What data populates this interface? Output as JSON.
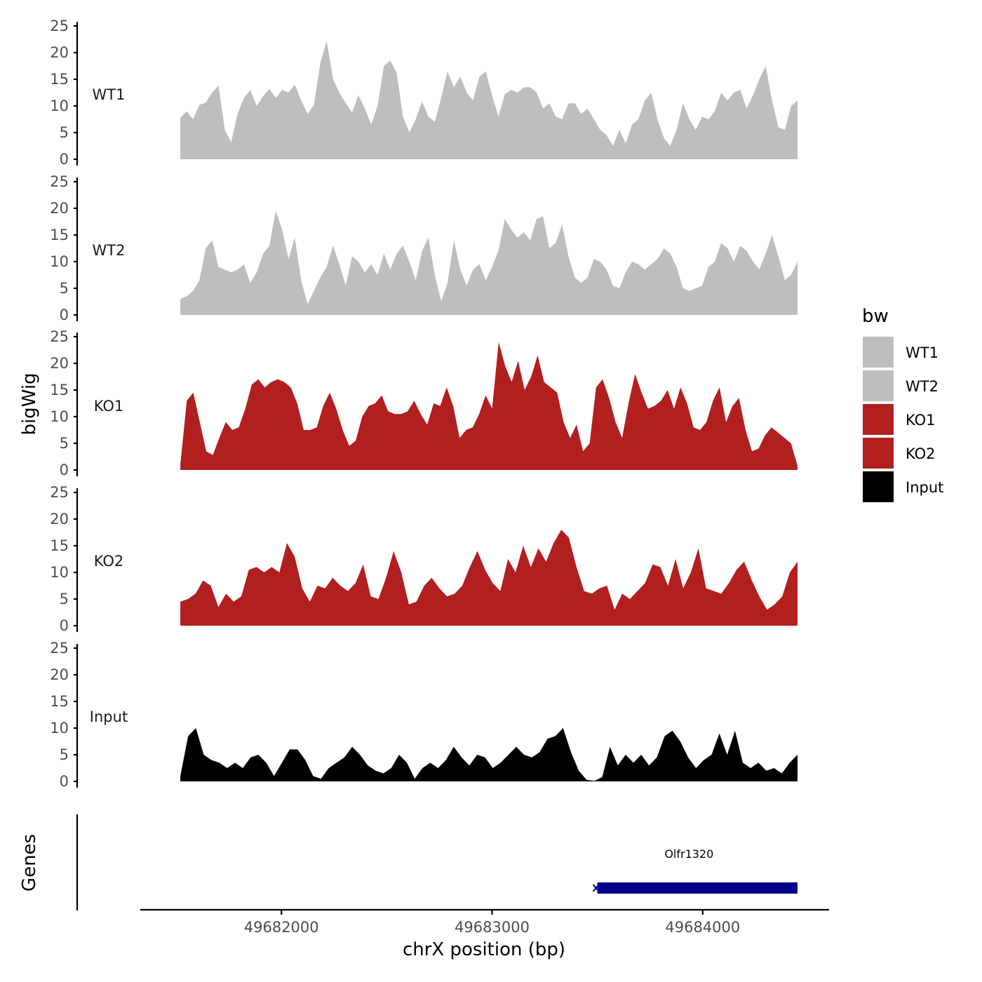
{
  "chart_data": {
    "type": "area",
    "ylabel": "bigWig",
    "xlabel": "chrX position (bp)",
    "xlim": [
      49681330,
      49684600
    ],
    "x_range": [
      49681520,
      49684450
    ],
    "ylim": [
      0,
      25
    ],
    "yticks": [
      0,
      5,
      10,
      15,
      20,
      25
    ],
    "xticks": [
      49682000,
      49683000,
      49684000
    ],
    "xtick_labels": [
      "49682000",
      "49683000",
      "49684000"
    ],
    "series": [
      {
        "name": "WT1",
        "color": "#bebebe",
        "values": [
          7.8,
          9.0,
          7.5,
          10.2,
          10.6,
          12.5,
          13.8,
          5.5,
          3.2,
          8.5,
          11.5,
          13.0,
          10.0,
          11.8,
          13.2,
          11.5,
          13.0,
          12.5,
          14.0,
          11.0,
          8.5,
          10.2,
          18.0,
          22.2,
          15.0,
          12.5,
          10.5,
          8.8,
          12.0,
          9.5,
          6.5,
          10.0,
          17.5,
          18.5,
          16.2,
          8.0,
          5.0,
          7.5,
          10.8,
          8.0,
          7.0,
          11.5,
          16.5,
          13.5,
          15.5,
          12.5,
          11.0,
          15.5,
          16.5,
          12.0,
          8.0,
          12.2,
          13.0,
          12.5,
          13.5,
          13.5,
          12.5,
          9.5,
          10.5,
          8.0,
          7.5,
          10.5,
          10.5,
          8.5,
          9.5,
          7.5,
          5.5,
          4.5,
          2.5,
          5.5,
          3.0,
          6.5,
          7.5,
          11.0,
          12.5,
          7.5,
          4.0,
          2.5,
          5.5,
          10.5,
          7.5,
          5.5,
          8.0,
          7.5,
          9.0,
          12.5,
          11.0,
          12.5,
          13.0,
          9.5,
          12.0,
          15.0,
          17.5,
          11.0,
          6.0,
          5.5,
          10.0,
          11.0
        ]
      },
      {
        "name": "WT2",
        "color": "#bebebe",
        "values": [
          3.0,
          3.5,
          4.5,
          6.5,
          12.5,
          14.0,
          9.0,
          8.5,
          8.0,
          8.5,
          9.5,
          6.0,
          8.0,
          11.5,
          13.0,
          19.5,
          16.0,
          10.5,
          14.5,
          6.5,
          2.0,
          4.5,
          7.0,
          9.0,
          13.0,
          9.5,
          5.5,
          11.0,
          10.0,
          8.0,
          9.5,
          7.5,
          11.5,
          8.5,
          11.5,
          13.0,
          10.0,
          6.5,
          12.0,
          14.5,
          7.5,
          2.5,
          6.0,
          14.0,
          8.5,
          5.5,
          8.5,
          9.5,
          6.5,
          9.0,
          12.0,
          18.0,
          16.0,
          14.5,
          15.5,
          14.0,
          18.0,
          18.5,
          12.5,
          13.5,
          17.0,
          11.0,
          7.0,
          6.0,
          7.0,
          10.5,
          10.0,
          8.5,
          5.5,
          5.0,
          8.0,
          10.0,
          9.5,
          8.5,
          9.5,
          10.5,
          12.5,
          11.5,
          9.0,
          5.0,
          4.5,
          5.0,
          5.5,
          9.0,
          10.0,
          13.5,
          12.5,
          10.0,
          13.0,
          12.0,
          10.0,
          8.5,
          11.5,
          15.0,
          11.0,
          6.5,
          7.5,
          10.0
        ]
      },
      {
        "name": "KO1",
        "color": "#b21f1f",
        "values": [
          1.0,
          13.0,
          14.5,
          9.0,
          3.5,
          2.8,
          6.0,
          9.0,
          7.5,
          8.0,
          11.5,
          16.0,
          17.0,
          15.5,
          16.5,
          17.0,
          16.5,
          15.5,
          12.5,
          7.5,
          7.5,
          8.0,
          12.0,
          14.5,
          11.5,
          7.5,
          4.5,
          5.5,
          10.0,
          12.0,
          12.5,
          14.0,
          11.0,
          10.5,
          10.5,
          11.0,
          13.0,
          10.5,
          8.5,
          12.5,
          12.0,
          15.5,
          12.0,
          6.0,
          7.5,
          8.0,
          10.5,
          14.0,
          11.5,
          24.0,
          19.5,
          16.5,
          20.5,
          15.0,
          17.5,
          21.5,
          16.5,
          15.5,
          14.5,
          9.0,
          6.0,
          8.5,
          3.5,
          5.0,
          15.5,
          17.0,
          13.5,
          9.0,
          6.0,
          12.5,
          18.0,
          14.5,
          11.5,
          12.0,
          13.0,
          15.0,
          11.5,
          15.5,
          12.5,
          8.0,
          7.5,
          9.0,
          13.0,
          15.5,
          9.0,
          12.0,
          13.5,
          7.5,
          3.5,
          4.0,
          6.5,
          8.0,
          7.0,
          6.0,
          5.0,
          0.8
        ]
      },
      {
        "name": "KO2",
        "color": "#b21f1f",
        "values": [
          4.5,
          5.0,
          6.0,
          8.5,
          7.5,
          3.5,
          6.0,
          4.5,
          5.5,
          10.5,
          11.0,
          10.0,
          11.0,
          10.0,
          15.5,
          13.0,
          7.0,
          4.5,
          7.5,
          7.0,
          9.0,
          7.5,
          6.5,
          8.0,
          11.5,
          5.5,
          5.0,
          9.0,
          14.0,
          10.0,
          4.0,
          4.5,
          7.5,
          9.0,
          7.0,
          5.5,
          6.0,
          7.5,
          11.0,
          14.0,
          10.5,
          8.0,
          6.5,
          12.5,
          10.0,
          15.0,
          11.0,
          14.5,
          12.0,
          15.5,
          18.0,
          16.5,
          11.0,
          6.5,
          6.0,
          7.0,
          7.5,
          3.0,
          6.0,
          5.0,
          6.5,
          8.0,
          11.5,
          11.0,
          7.5,
          12.5,
          7.0,
          10.0,
          14.5,
          7.0,
          6.5,
          6.0,
          8.0,
          10.5,
          12.0,
          8.5,
          5.5,
          3.0,
          4.0,
          5.5,
          10.0,
          12.0
        ]
      },
      {
        "name": "Input",
        "color": "#000000",
        "values": [
          1.0,
          8.5,
          10.0,
          5.0,
          4.0,
          3.5,
          2.5,
          3.5,
          2.5,
          4.5,
          5.0,
          3.5,
          1.0,
          3.5,
          6.0,
          6.0,
          4.0,
          1.0,
          0.5,
          2.5,
          3.5,
          4.5,
          6.5,
          5.0,
          3.0,
          2.0,
          1.5,
          2.5,
          5.0,
          3.5,
          0.5,
          2.5,
          3.5,
          2.5,
          4.0,
          6.5,
          4.5,
          3.0,
          5.0,
          4.5,
          2.5,
          3.5,
          5.0,
          6.5,
          5.0,
          4.5,
          5.5,
          8.0,
          8.5,
          10.0,
          5.5,
          2.0,
          0.3,
          0.1,
          0.8,
          6.5,
          3.0,
          5.0,
          3.5,
          5.0,
          3.0,
          4.5,
          8.5,
          9.5,
          7.5,
          4.5,
          2.5,
          4.0,
          5.0,
          9.0,
          5.0,
          9.5,
          3.5,
          2.5,
          3.5,
          2.0,
          2.5,
          1.5,
          3.5,
          5.0
        ]
      }
    ],
    "genes_track": {
      "label": "Genes",
      "genes": [
        {
          "name": "Olfr1320",
          "start": 49683500,
          "end": 49684450,
          "strand": "-",
          "color": "#00008b"
        }
      ]
    },
    "legend": {
      "title": "bw",
      "position": "right",
      "entries": [
        {
          "label": "WT1",
          "color": "#bebebe"
        },
        {
          "label": "WT2",
          "color": "#bebebe"
        },
        {
          "label": "KO1",
          "color": "#b21f1f"
        },
        {
          "label": "KO2",
          "color": "#b21f1f"
        },
        {
          "label": "Input",
          "color": "#000000"
        }
      ]
    },
    "grid": false
  }
}
